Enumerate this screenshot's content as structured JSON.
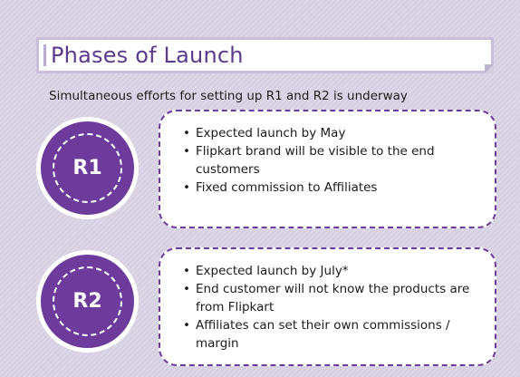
{
  "slide": {
    "title": "Phases of Launch",
    "subtitle": "Simultaneous efforts for setting up R1 and R2 is underway",
    "colors": {
      "accent": "#6c3b9c",
      "title": "#5b3a8c",
      "background": "#d6d0e2"
    }
  },
  "phases": [
    {
      "label": "R1",
      "bullets": [
        "Expected launch by May",
        "Flipkart brand will be visible to the end customers",
        "Fixed commission to Affiliates"
      ]
    },
    {
      "label": "R2",
      "bullets": [
        "Expected launch by July*",
        "End customer will not know the products are from Flipkart",
        "Affiliates can set their own commissions / margin"
      ]
    }
  ]
}
